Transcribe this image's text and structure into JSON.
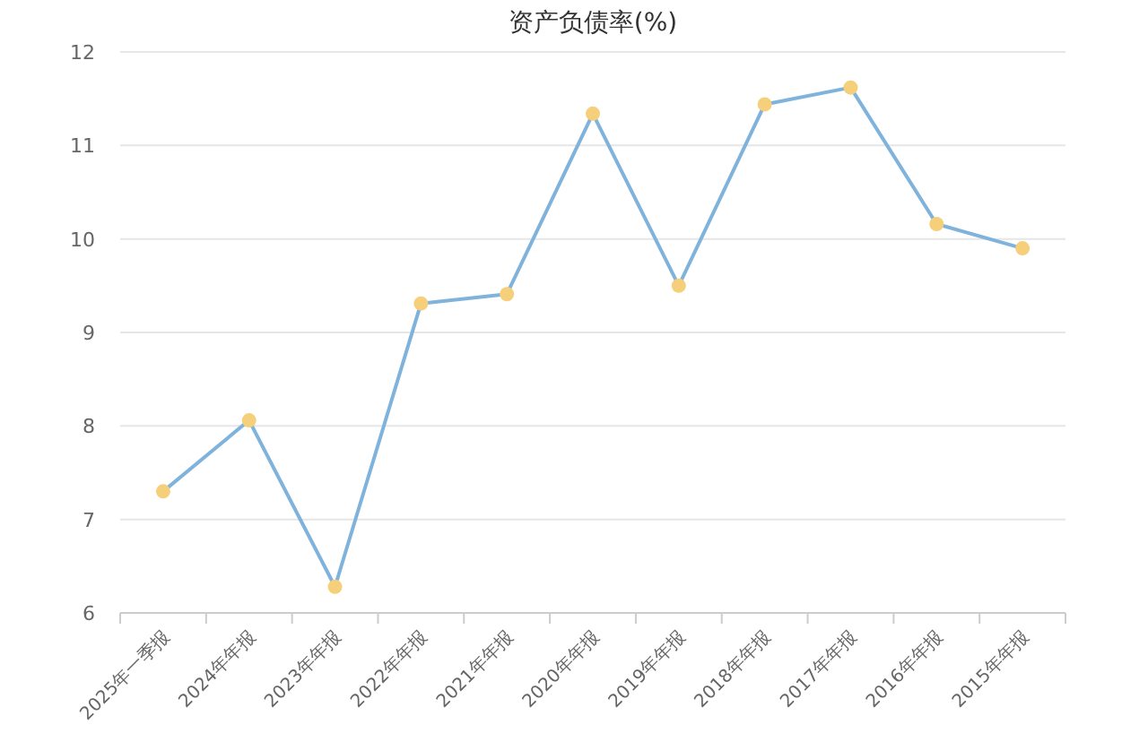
{
  "chart_data": {
    "type": "line",
    "title": "资产负债率(%)",
    "categories": [
      "2025年一季报",
      "2024年年报",
      "2023年年报",
      "2022年年报",
      "2021年年报",
      "2020年年报",
      "2019年年报",
      "2018年年报",
      "2017年年报",
      "2016年年报",
      "2015年年报"
    ],
    "series": [
      {
        "color": "#7fb3dc",
        "values": [
          7.3,
          8.06,
          6.28,
          9.31,
          9.41,
          11.34,
          9.5,
          11.44,
          11.62,
          10.16,
          9.9
        ],
        "colors": [
          "#f5cf7a",
          "#f5cf7a",
          "#f5cf7a",
          "#f5cf7a",
          "#f5cf7a",
          "#f5cf7a",
          "#f5cf7a",
          "#f5cf7a",
          "#f5cf7a",
          "#f5cf7a",
          "#f5cf7a"
        ]
      }
    ],
    "ylim": [
      6,
      12
    ],
    "yticks": [
      6,
      7,
      8,
      9,
      10,
      11,
      12
    ],
    "grid": "y",
    "marker": "circle",
    "line_style": "solid"
  }
}
